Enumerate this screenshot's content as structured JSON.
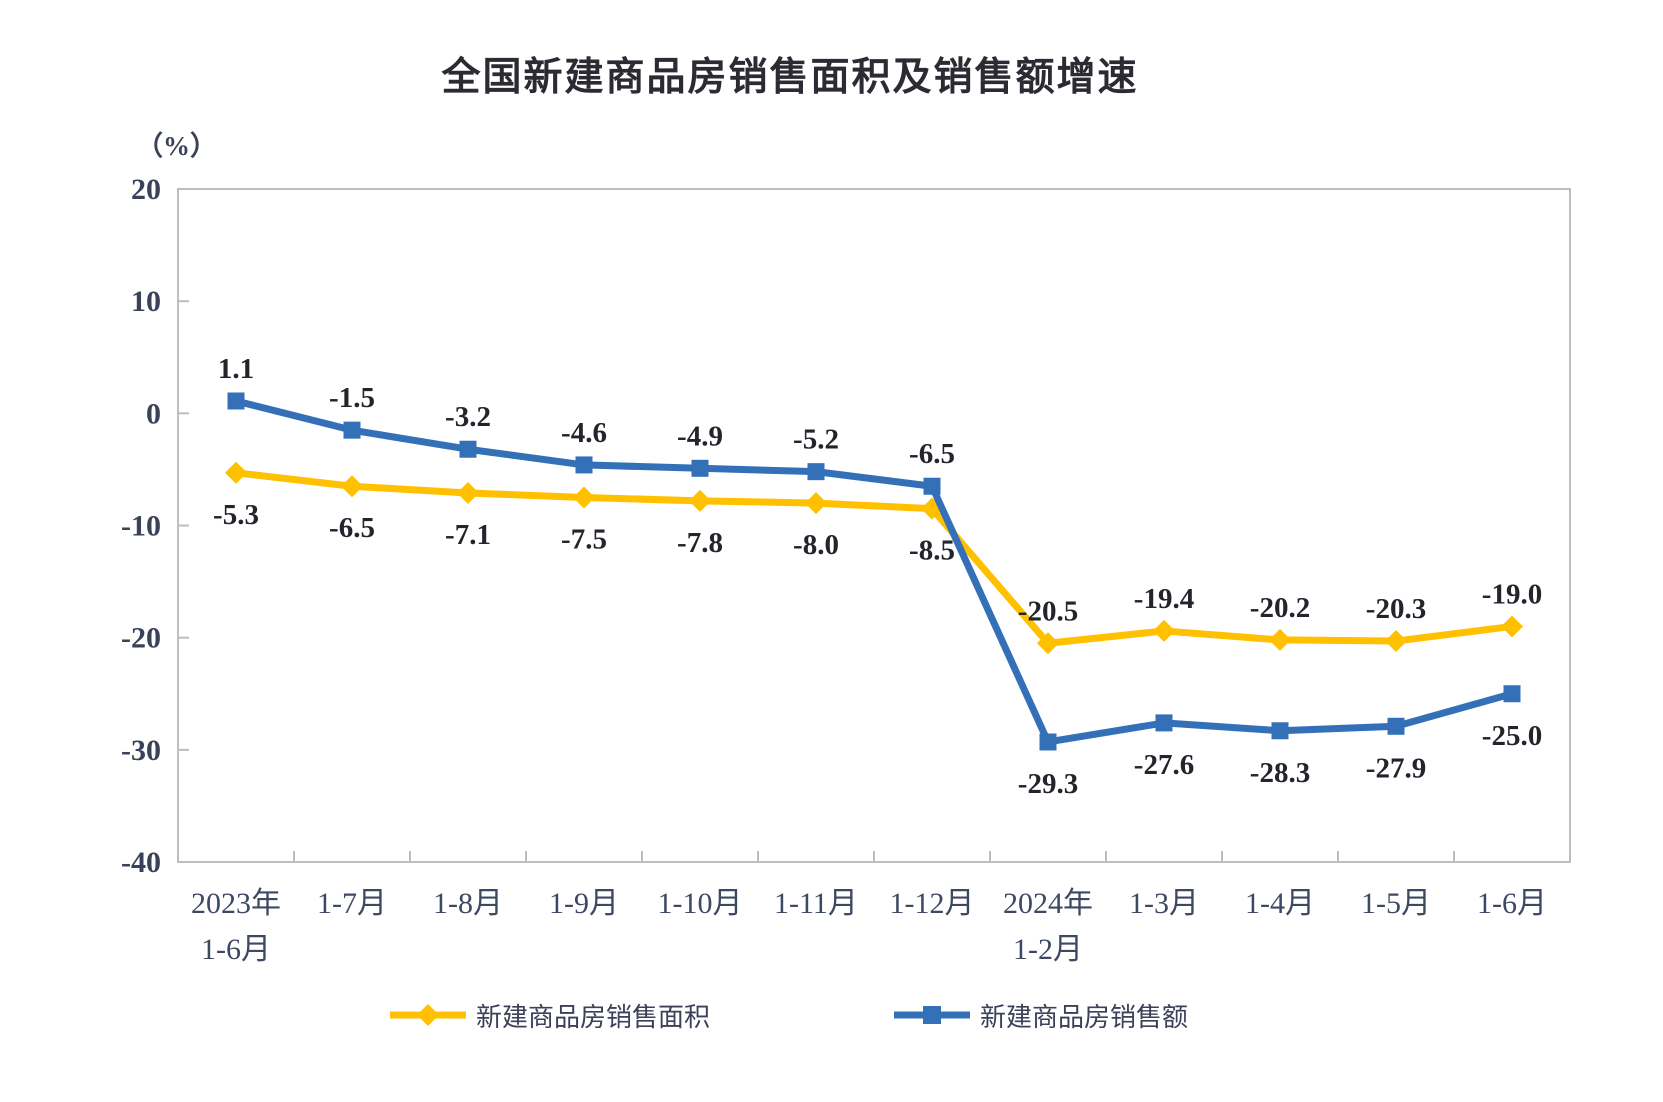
{
  "chart_data": {
    "type": "line",
    "title": "全国新建商品房销售面积及销售额增速",
    "ylabel": "（%）",
    "xlabel": "",
    "categories": [
      "2023年\n1-6月",
      "1-7月",
      "1-8月",
      "1-9月",
      "1-10月",
      "1-11月",
      "1-12月",
      "2024年\n1-2月",
      "1-3月",
      "1-4月",
      "1-5月",
      "1-6月"
    ],
    "series": [
      {
        "name": "新建商品房销售面积",
        "marker": "diamond",
        "color": "#FFC000",
        "values": [
          -5.3,
          -6.5,
          -7.1,
          -7.5,
          -7.8,
          -8.0,
          -8.5,
          -20.5,
          -19.4,
          -20.2,
          -20.3,
          -19.0
        ]
      },
      {
        "name": "新建商品房销售额",
        "marker": "square",
        "color": "#3470B8",
        "values": [
          1.1,
          -1.5,
          -3.2,
          -4.6,
          -4.9,
          -5.2,
          -6.5,
          -29.3,
          -27.6,
          -28.3,
          -27.9,
          -25.0
        ]
      }
    ],
    "ylim": [
      -40,
      20
    ],
    "yticks": [
      20,
      10,
      0,
      -10,
      -20,
      -30,
      -40
    ],
    "grid": false,
    "legend_position": "bottom",
    "axis_color": "#BDBDBD",
    "data_label_color": "#24242c",
    "tick_label_color": "#3a4158"
  }
}
